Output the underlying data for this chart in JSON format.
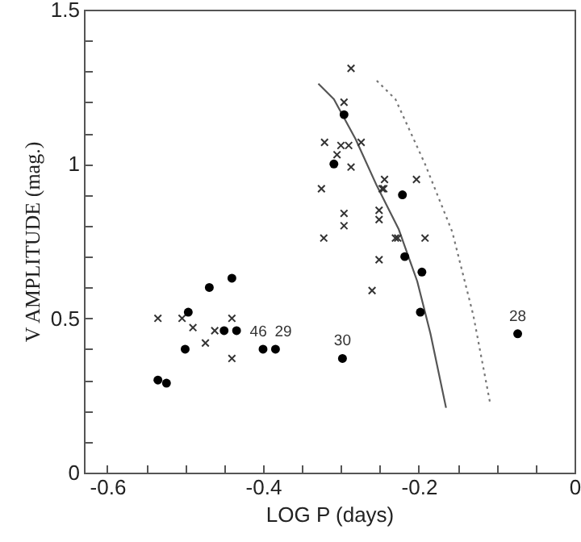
{
  "chart_data": {
    "type": "scatter",
    "xlabel": "LOG P (days)",
    "ylabel": "V AMPLITUDE (mag.)",
    "xlim": [
      -0.63,
      0
    ],
    "ylim": [
      0,
      1.5
    ],
    "xticks": [
      -0.6,
      {
        "value": -0.55,
        "label": null
      },
      {
        "value": -0.5,
        "label": null
      },
      {
        "value": -0.45,
        "label": null
      },
      -0.4,
      {
        "value": -0.35,
        "label": null
      },
      {
        "value": -0.3,
        "label": null
      },
      {
        "value": -0.25,
        "label": null
      },
      -0.2,
      {
        "value": -0.15,
        "label": null
      },
      {
        "value": -0.1,
        "label": null
      },
      {
        "value": -0.05,
        "label": null
      },
      0
    ],
    "yticks": [
      0,
      {
        "value": 0.1,
        "label": null
      },
      {
        "value": 0.2,
        "label": null
      },
      {
        "value": 0.3,
        "label": null
      },
      {
        "value": 0.4,
        "label": null
      },
      0.5,
      {
        "value": 0.6,
        "label": null
      },
      {
        "value": 0.7,
        "label": null
      },
      {
        "value": 0.8,
        "label": null
      },
      {
        "value": 0.9,
        "label": null
      },
      1,
      {
        "value": 1.1,
        "label": null
      },
      {
        "value": 1.2,
        "label": null
      },
      {
        "value": 1.3,
        "label": null
      },
      {
        "value": 1.4,
        "label": null
      },
      1.5
    ],
    "series": [
      {
        "type": "line",
        "color": "#555555",
        "line_style": "solid",
        "marker": "none",
        "x": [
          -0.329,
          -0.309,
          -0.281,
          -0.254,
          -0.226,
          -0.202,
          -0.185,
          -0.165
        ],
        "values": [
          1.26,
          1.21,
          1.08,
          0.93,
          0.79,
          0.62,
          0.45,
          0.21
        ]
      },
      {
        "type": "line",
        "color": "#777777",
        "line_style": "dotted",
        "marker": "none",
        "x": [
          -0.254,
          -0.23,
          -0.192,
          -0.157,
          -0.13,
          -0.108
        ],
        "values": [
          1.27,
          1.21,
          1.0,
          0.78,
          0.51,
          0.22
        ]
      },
      {
        "color": "#333333",
        "marker": "cross",
        "x": [
          -0.287,
          -0.296,
          -0.321,
          -0.3,
          -0.29,
          -0.305,
          -0.274,
          -0.287,
          -0.325,
          -0.245,
          -0.244,
          -0.203,
          -0.296,
          -0.296,
          -0.322,
          -0.251,
          -0.251,
          -0.23,
          -0.227,
          -0.192,
          -0.251,
          -0.26,
          -0.247
        ],
        "values": [
          1.31,
          1.2,
          1.07,
          1.06,
          1.06,
          1.03,
          1.07,
          0.99,
          0.92,
          0.92,
          0.95,
          0.95,
          0.84,
          0.8,
          0.76,
          0.85,
          0.82,
          0.76,
          0.76,
          0.76,
          0.69,
          0.59,
          0.92
        ]
      },
      {
        "color": "#333333",
        "marker": "cross",
        "x": [
          -0.535,
          -0.504,
          -0.49,
          -0.474,
          -0.462,
          -0.44,
          -0.44
        ],
        "values": [
          0.5,
          0.5,
          0.47,
          0.42,
          0.46,
          0.5,
          0.37
        ]
      },
      {
        "color": "#000000",
        "marker": "circle",
        "x": [
          -0.535,
          -0.524,
          -0.5,
          -0.496,
          -0.469,
          -0.45,
          -0.44,
          -0.434,
          -0.4,
          -0.384,
          -0.298
        ],
        "values": [
          0.3,
          0.29,
          0.4,
          0.52,
          0.6,
          0.46,
          0.63,
          0.46,
          0.4,
          0.4,
          0.37
        ]
      },
      {
        "color": "#000000",
        "marker": "circle",
        "x": [
          -0.309,
          -0.296,
          -0.221,
          -0.218,
          -0.196,
          -0.198,
          -0.073
        ],
        "values": [
          1.0,
          1.16,
          0.9,
          0.7,
          0.65,
          0.52,
          0.45
        ]
      }
    ],
    "annotations": [
      {
        "text": "46",
        "x": -0.406,
        "y": 0.4
      },
      {
        "text": "29",
        "x": -0.374,
        "y": 0.4
      },
      {
        "text": "30",
        "x": -0.298,
        "y": 0.37
      },
      {
        "text": "28",
        "x": -0.073,
        "y": 0.45
      }
    ]
  }
}
